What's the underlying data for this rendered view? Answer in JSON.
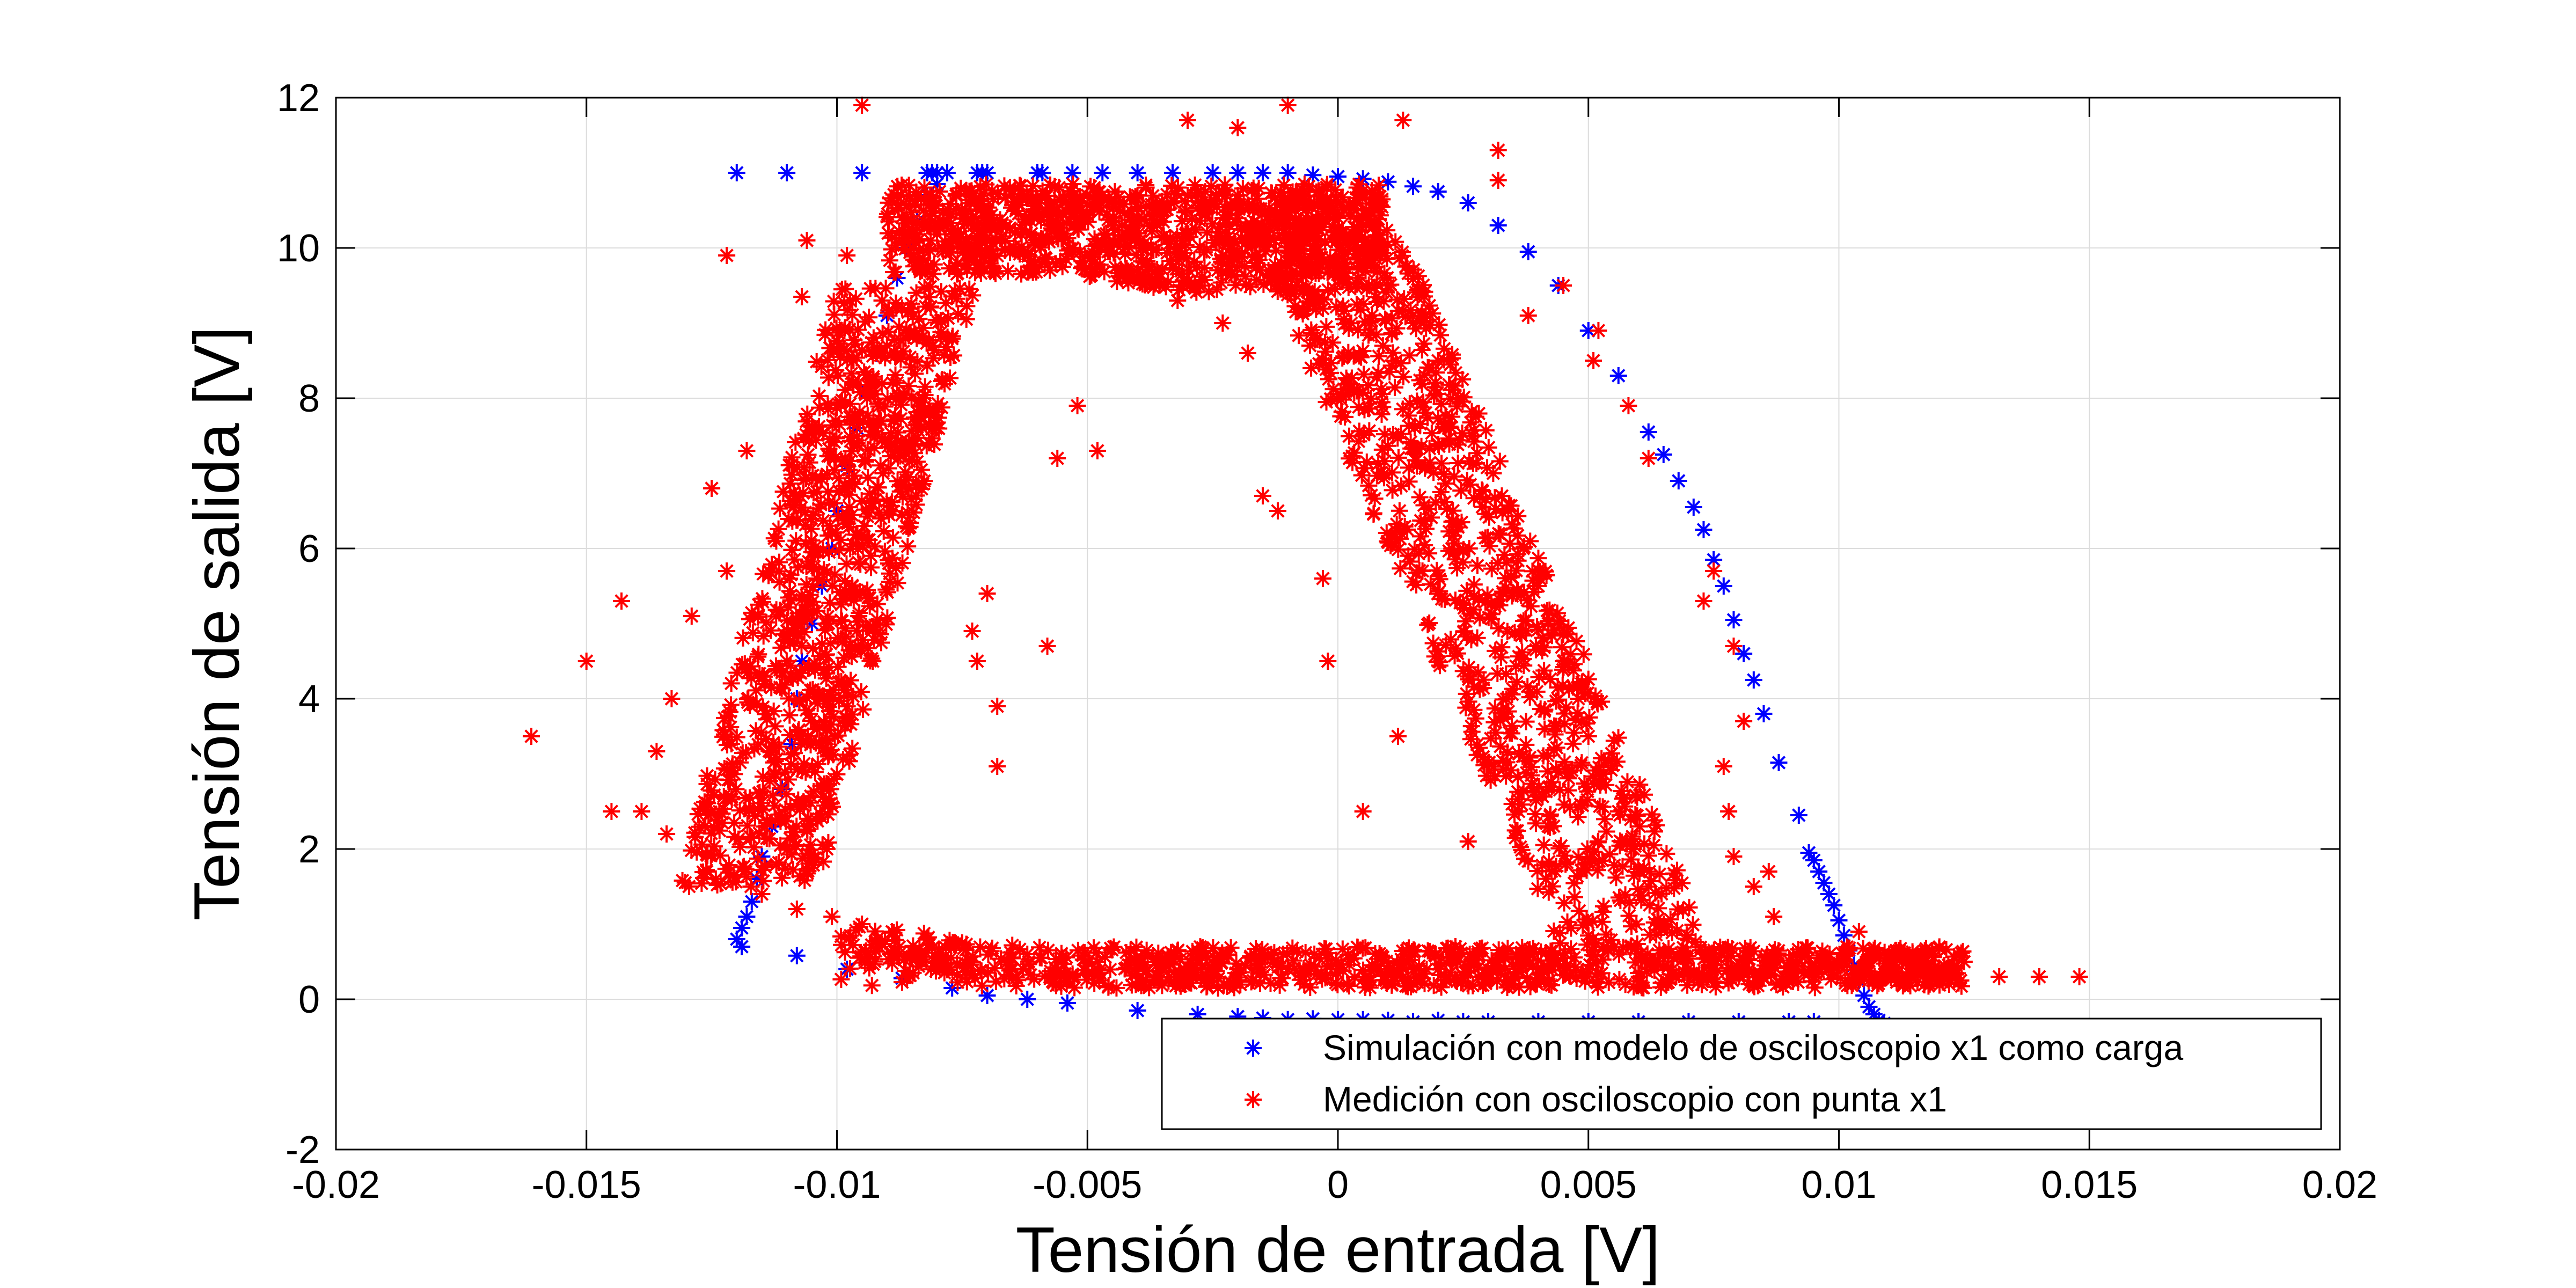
{
  "chart_data": {
    "type": "scatter",
    "xlabel": "Tensión de entrada [V]",
    "ylabel": "Tensión de salida [V]",
    "xlim": [
      -0.02,
      0.02
    ],
    "ylim": [
      -2,
      12
    ],
    "grid": true,
    "legend_position": "bottom-right",
    "x_ticks": [
      -0.02,
      -0.015,
      -0.01,
      -0.005,
      0,
      0.005,
      0.01,
      0.015,
      0.02
    ],
    "x_tick_labels": [
      "-0.02",
      "-0.015",
      "-0.01",
      "-0.005",
      "0",
      "0.005",
      "0.01",
      "0.015",
      "0.02"
    ],
    "y_ticks": [
      -2,
      0,
      2,
      4,
      6,
      8,
      10,
      12
    ],
    "y_tick_labels": [
      "-2",
      "0",
      "2",
      "4",
      "6",
      "8",
      "10",
      "12"
    ],
    "series": [
      {
        "name": "Simulación con modelo de osciloscopio x1 como carga",
        "color": "#0000ff",
        "marker": "asterisk",
        "points": [
          [
            -0.012,
            11.0
          ],
          [
            -0.011,
            11.0
          ],
          [
            -0.0095,
            11.0
          ],
          [
            -0.0082,
            11.0
          ],
          [
            -0.0081,
            11.0
          ],
          [
            -0.008,
            11.0
          ],
          [
            -0.0078,
            11.0
          ],
          [
            -0.0072,
            11.0
          ],
          [
            -0.0071,
            11.0
          ],
          [
            -0.007,
            11.0
          ],
          [
            -0.006,
            11.0
          ],
          [
            -0.0059,
            11.0
          ],
          [
            -0.0053,
            11.0
          ],
          [
            -0.0047,
            11.0
          ],
          [
            -0.004,
            11.0
          ],
          [
            -0.0033,
            11.0
          ],
          [
            -0.0025,
            11.0
          ],
          [
            -0.002,
            11.0
          ],
          [
            -0.0015,
            11.0
          ],
          [
            -0.001,
            11.0
          ],
          [
            -0.0005,
            10.97
          ],
          [
            0.0,
            10.95
          ],
          [
            0.0005,
            10.92
          ],
          [
            0.001,
            10.88
          ],
          [
            0.0015,
            10.82
          ],
          [
            0.002,
            10.75
          ],
          [
            0.0026,
            10.6
          ],
          [
            0.0032,
            10.3
          ],
          [
            0.0038,
            9.95
          ],
          [
            0.0044,
            9.5
          ],
          [
            0.005,
            8.9
          ],
          [
            0.0056,
            8.3
          ],
          [
            0.0062,
            7.55
          ],
          [
            0.0065,
            7.25
          ],
          [
            0.0068,
            6.9
          ],
          [
            0.0071,
            6.55
          ],
          [
            0.0073,
            6.25
          ],
          [
            0.0075,
            5.85
          ],
          [
            0.0077,
            5.5
          ],
          [
            0.0079,
            5.05
          ],
          [
            0.0081,
            4.6
          ],
          [
            0.0083,
            4.25
          ],
          [
            0.0085,
            3.8
          ],
          [
            0.0088,
            3.15
          ],
          [
            0.0092,
            2.45
          ],
          [
            0.0094,
            1.95
          ],
          [
            0.0095,
            1.85
          ],
          [
            0.0096,
            1.7
          ],
          [
            0.0097,
            1.55
          ],
          [
            0.0098,
            1.4
          ],
          [
            0.0099,
            1.25
          ],
          [
            0.01,
            1.05
          ],
          [
            0.0101,
            0.85
          ],
          [
            0.0102,
            0.65
          ],
          [
            0.0103,
            0.45
          ],
          [
            0.0104,
            0.25
          ],
          [
            0.0105,
            0.05
          ],
          [
            0.0106,
            -0.1
          ],
          [
            0.0107,
            -0.2
          ],
          [
            0.0108,
            -0.28
          ],
          [
            0.0109,
            -0.32
          ],
          [
            0.0095,
            -0.3
          ],
          [
            0.009,
            -0.3
          ],
          [
            0.008,
            -0.3
          ],
          [
            0.007,
            -0.3
          ],
          [
            0.006,
            -0.3
          ],
          [
            0.005,
            -0.3
          ],
          [
            0.004,
            -0.3
          ],
          [
            0.003,
            -0.3
          ],
          [
            0.0025,
            -0.3
          ],
          [
            0.002,
            -0.28
          ],
          [
            0.0015,
            -0.3
          ],
          [
            0.001,
            -0.28
          ],
          [
            0.0005,
            -0.27
          ],
          [
            0.0,
            -0.27
          ],
          [
            -0.0005,
            -0.26
          ],
          [
            -0.001,
            -0.27
          ],
          [
            -0.0015,
            -0.25
          ],
          [
            -0.002,
            -0.23
          ],
          [
            -0.0028,
            -0.2
          ],
          [
            -0.004,
            -0.15
          ],
          [
            -0.0054,
            -0.05
          ],
          [
            -0.0062,
            0.0
          ],
          [
            -0.007,
            0.05
          ],
          [
            -0.0077,
            0.15
          ],
          [
            -0.0087,
            0.28
          ],
          [
            -0.0098,
            0.4
          ],
          [
            -0.0108,
            0.58
          ],
          [
            -0.0119,
            0.7
          ],
          [
            -0.012,
            0.8
          ],
          [
            -0.0119,
            0.95
          ],
          [
            -0.0118,
            1.1
          ],
          [
            -0.0117,
            1.3
          ],
          [
            -0.0116,
            1.6
          ],
          [
            -0.0115,
            1.9
          ],
          [
            -0.0113,
            2.3
          ],
          [
            -0.0111,
            2.8
          ],
          [
            -0.0109,
            3.4
          ],
          [
            -0.0108,
            4.0
          ],
          [
            -0.0107,
            4.5
          ],
          [
            -0.0105,
            5.0
          ],
          [
            -0.0103,
            5.5
          ],
          [
            -0.0101,
            6.0
          ],
          [
            -0.01,
            6.5
          ],
          [
            -0.0098,
            7.1
          ],
          [
            -0.0096,
            7.6
          ],
          [
            -0.0094,
            8.1
          ],
          [
            -0.0092,
            8.6
          ],
          [
            -0.009,
            9.1
          ],
          [
            -0.0088,
            9.6
          ],
          [
            -0.0086,
            10.0
          ],
          [
            -0.0084,
            10.35
          ],
          [
            -0.0082,
            10.7
          ],
          [
            -0.008,
            10.85
          ]
        ]
      },
      {
        "name": "Medición con osciloscopio con punta x1",
        "color": "#ff0000",
        "marker": "asterisk",
        "points": [
          [
            -0.0161,
            3.5
          ],
          [
            -0.015,
            4.5
          ],
          [
            -0.0143,
            5.3
          ],
          [
            -0.0145,
            2.5
          ],
          [
            -0.0139,
            2.5
          ],
          [
            -0.0122,
            9.9
          ],
          [
            -0.0106,
            10.1
          ],
          [
            -0.0107,
            9.35
          ],
          [
            -0.0098,
            9.9
          ],
          [
            -0.0091,
            9.3
          ],
          [
            -0.009,
            8.7
          ],
          [
            -0.0068,
            3.1
          ],
          [
            -0.0068,
            3.9
          ],
          [
            -0.007,
            5.4
          ],
          [
            -0.0073,
            4.9
          ],
          [
            -0.0072,
            4.5
          ],
          [
            -0.0058,
            4.7
          ],
          [
            -0.0056,
            7.2
          ],
          [
            -0.0052,
            7.9
          ],
          [
            -0.0048,
            7.3
          ],
          [
            -0.0038,
            9.75
          ],
          [
            -0.0032,
            9.3
          ],
          [
            -0.0023,
            9.0
          ],
          [
            -0.0018,
            8.6
          ],
          [
            -0.0015,
            6.7
          ],
          [
            -0.0012,
            6.5
          ],
          [
            -0.0003,
            5.6
          ],
          [
            -0.0002,
            4.5
          ],
          [
            0.0005,
            2.5
          ],
          [
            0.0012,
            3.5
          ],
          [
            0.0026,
            2.1
          ],
          [
            0.0032,
            10.9
          ],
          [
            0.0032,
            11.3
          ],
          [
            0.0038,
            9.1
          ],
          [
            0.0045,
            9.5
          ],
          [
            0.0052,
            8.9
          ],
          [
            0.0051,
            8.5
          ],
          [
            0.0058,
            7.9
          ],
          [
            0.0062,
            7.2
          ],
          [
            0.0073,
            5.3
          ],
          [
            0.0075,
            5.7
          ],
          [
            0.0079,
            4.7
          ],
          [
            0.0081,
            3.7
          ],
          [
            0.0077,
            3.1
          ],
          [
            0.0078,
            2.5
          ],
          [
            0.0079,
            1.9
          ],
          [
            0.0083,
            1.5
          ],
          [
            0.0086,
            1.7
          ],
          [
            0.0087,
            1.1
          ],
          [
            0.0104,
            0.9
          ],
          [
            0.0125,
            0.5
          ],
          [
            0.0132,
            0.3
          ],
          [
            0.014,
            0.3
          ],
          [
            0.0148,
            0.3
          ],
          [
            -0.0095,
            11.9
          ],
          [
            -0.001,
            11.9
          ],
          [
            0.0013,
            11.7
          ],
          [
            -0.003,
            11.7
          ],
          [
            -0.002,
            11.6
          ],
          [
            -0.0125,
            6.8
          ],
          [
            -0.0118,
            7.3
          ],
          [
            -0.0122,
            5.7
          ],
          [
            -0.0129,
            5.1
          ],
          [
            -0.0133,
            4.0
          ],
          [
            -0.0136,
            3.3
          ],
          [
            -0.0134,
            2.2
          ],
          [
            -0.0126,
            1.7
          ],
          [
            -0.0115,
            1.4
          ],
          [
            -0.0108,
            1.2
          ],
          [
            -0.0101,
            1.1
          ],
          [
            -0.0095,
            1.0
          ],
          [
            -0.0089,
            0.9
          ],
          [
            -0.0082,
            0.8
          ],
          [
            -0.0075,
            0.75
          ],
          [
            -0.0069,
            0.68
          ],
          [
            -0.0062,
            0.6
          ],
          [
            -0.0055,
            0.55
          ],
          [
            -0.0048,
            0.5
          ],
          [
            -0.004,
            0.45
          ],
          [
            -0.003,
            0.42
          ],
          [
            -0.002,
            0.4
          ],
          [
            -0.001,
            0.4
          ],
          [
            0.0,
            0.4
          ],
          [
            0.001,
            0.4
          ],
          [
            0.002,
            0.4
          ],
          [
            0.003,
            0.4
          ],
          [
            0.004,
            0.4
          ],
          [
            0.005,
            0.4
          ],
          [
            0.006,
            0.35
          ],
          [
            0.007,
            0.35
          ],
          [
            0.008,
            0.3
          ],
          [
            0.009,
            0.3
          ],
          [
            0.0095,
            0.3
          ],
          [
            0.0105,
            0.3
          ],
          [
            0.0112,
            0.25
          ],
          [
            0.0118,
            0.3
          ],
          [
            0.0122,
            0.2
          ],
          [
            -0.0102,
            2.0
          ],
          [
            -0.0108,
            2.6
          ],
          [
            -0.0112,
            3.2
          ],
          [
            -0.0114,
            3.8
          ],
          [
            -0.0112,
            4.4
          ],
          [
            -0.0108,
            5.0
          ],
          [
            -0.0104,
            5.6
          ],
          [
            -0.0101,
            6.2
          ],
          [
            -0.0098,
            6.8
          ],
          [
            -0.0096,
            7.4
          ],
          [
            -0.0094,
            8.0
          ],
          [
            -0.0091,
            8.6
          ],
          [
            -0.0087,
            9.2
          ],
          [
            -0.0083,
            9.7
          ],
          [
            -0.0077,
            10.1
          ],
          [
            -0.007,
            10.4
          ],
          [
            -0.006,
            10.6
          ],
          [
            -0.005,
            10.7
          ],
          [
            -0.004,
            10.7
          ],
          [
            -0.003,
            10.7
          ],
          [
            -0.002,
            10.7
          ],
          [
            -0.001,
            10.6
          ],
          [
            0.0,
            10.4
          ],
          [
            0.0006,
            10.0
          ],
          [
            0.001,
            9.5
          ],
          [
            0.0015,
            9.0
          ],
          [
            0.002,
            8.5
          ],
          [
            0.0024,
            8.0
          ],
          [
            0.0027,
            7.5
          ],
          [
            0.0031,
            7.0
          ],
          [
            0.0034,
            6.5
          ],
          [
            0.0037,
            6.0
          ],
          [
            0.004,
            5.5
          ],
          [
            0.0042,
            5.0
          ],
          [
            0.0045,
            4.5
          ],
          [
            0.0048,
            4.0
          ],
          [
            0.005,
            3.5
          ],
          [
            0.0053,
            3.0
          ],
          [
            0.0056,
            2.5
          ],
          [
            0.0059,
            2.0
          ],
          [
            0.0062,
            1.5
          ],
          [
            0.0064,
            1.0
          ],
          [
            0.0066,
            0.6
          ]
        ],
        "dense_bands": [
          {
            "region": "left_branch",
            "x_range": [
              -0.0125,
              -0.0085
            ],
            "y_range": [
              1.5,
              9.5
            ]
          },
          {
            "region": "top_band",
            "x_range": [
              -0.009,
              0.001
            ],
            "y_range": [
              8.6,
              10.9
            ]
          },
          {
            "region": "right_branch",
            "x_range": [
              -0.001,
              0.0075
            ],
            "y_range": [
              0.6,
              10.6
            ]
          },
          {
            "region": "bottom_band",
            "x_range": [
              -0.01,
              0.0125
            ],
            "y_range": [
              0.1,
              1.1
            ]
          }
        ]
      }
    ]
  }
}
